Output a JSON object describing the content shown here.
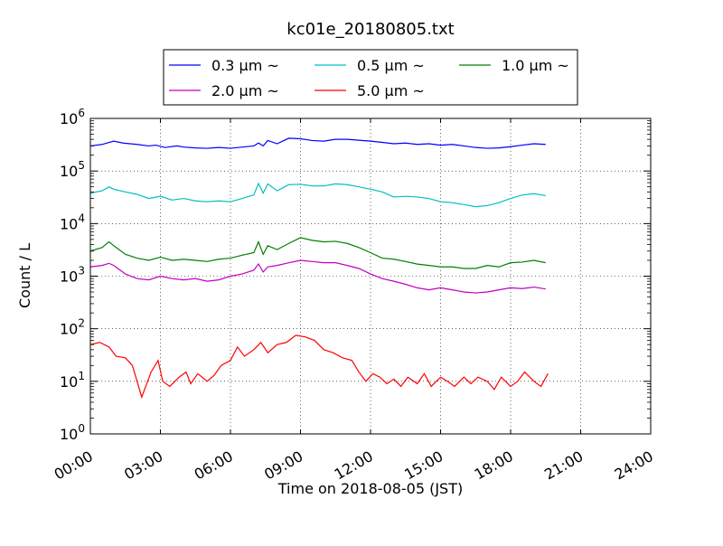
{
  "chart_data": {
    "type": "line",
    "title": "kc01e_20180805.txt",
    "xlabel": "Time on 2018-08-05 (JST)",
    "ylabel": "Count / L",
    "x_unit": "hours",
    "xlim": [
      0,
      24
    ],
    "ylim": [
      1,
      1000000
    ],
    "yscale": "log",
    "grid": true,
    "legend_position": "top-center",
    "x_ticks": [
      {
        "value": 0,
        "label": "00:00"
      },
      {
        "value": 3,
        "label": "03:00"
      },
      {
        "value": 6,
        "label": "06:00"
      },
      {
        "value": 9,
        "label": "09:00"
      },
      {
        "value": 12,
        "label": "12:00"
      },
      {
        "value": 15,
        "label": "15:00"
      },
      {
        "value": 18,
        "label": "18:00"
      },
      {
        "value": 21,
        "label": "21:00"
      },
      {
        "value": 24,
        "label": "24:00"
      }
    ],
    "y_ticks": [
      {
        "value": 1,
        "base": "10",
        "exp": "0"
      },
      {
        "value": 10,
        "base": "10",
        "exp": "1"
      },
      {
        "value": 100,
        "base": "10",
        "exp": "2"
      },
      {
        "value": 1000,
        "base": "10",
        "exp": "3"
      },
      {
        "value": 10000,
        "base": "10",
        "exp": "4"
      },
      {
        "value": 100000,
        "base": "10",
        "exp": "5"
      },
      {
        "value": 1000000,
        "base": "10",
        "exp": "6"
      }
    ],
    "series": [
      {
        "name": "0.3 μm ~",
        "color": "#0000ff",
        "points": [
          [
            0.0,
            300000
          ],
          [
            0.5,
            320000
          ],
          [
            0.8,
            350000
          ],
          [
            1.0,
            370000
          ],
          [
            1.4,
            340000
          ],
          [
            2.0,
            320000
          ],
          [
            2.5,
            300000
          ],
          [
            2.8,
            310000
          ],
          [
            3.2,
            280000
          ],
          [
            3.7,
            300000
          ],
          [
            4.0,
            285000
          ],
          [
            4.5,
            275000
          ],
          [
            5.0,
            270000
          ],
          [
            5.5,
            280000
          ],
          [
            6.0,
            270000
          ],
          [
            6.5,
            285000
          ],
          [
            7.0,
            300000
          ],
          [
            7.2,
            340000
          ],
          [
            7.4,
            300000
          ],
          [
            7.6,
            380000
          ],
          [
            8.0,
            330000
          ],
          [
            8.5,
            420000
          ],
          [
            9.0,
            410000
          ],
          [
            9.5,
            380000
          ],
          [
            10.0,
            370000
          ],
          [
            10.5,
            400000
          ],
          [
            11.0,
            400000
          ],
          [
            11.5,
            385000
          ],
          [
            12.0,
            370000
          ],
          [
            12.5,
            350000
          ],
          [
            13.0,
            330000
          ],
          [
            13.5,
            340000
          ],
          [
            14.0,
            320000
          ],
          [
            14.5,
            330000
          ],
          [
            15.0,
            310000
          ],
          [
            15.5,
            320000
          ],
          [
            16.0,
            300000
          ],
          [
            16.5,
            280000
          ],
          [
            17.0,
            270000
          ],
          [
            17.5,
            275000
          ],
          [
            18.0,
            290000
          ],
          [
            18.5,
            310000
          ],
          [
            19.0,
            330000
          ],
          [
            19.5,
            320000
          ]
        ]
      },
      {
        "name": "0.5 μm ~",
        "color": "#00bfbf",
        "points": [
          [
            0.0,
            38000
          ],
          [
            0.5,
            42000
          ],
          [
            0.8,
            50000
          ],
          [
            1.0,
            45000
          ],
          [
            1.5,
            40000
          ],
          [
            2.0,
            36000
          ],
          [
            2.5,
            30000
          ],
          [
            3.0,
            33000
          ],
          [
            3.5,
            28000
          ],
          [
            4.0,
            30000
          ],
          [
            4.5,
            27000
          ],
          [
            5.0,
            26000
          ],
          [
            5.5,
            27000
          ],
          [
            6.0,
            26000
          ],
          [
            6.5,
            30000
          ],
          [
            7.0,
            35000
          ],
          [
            7.2,
            58000
          ],
          [
            7.4,
            38000
          ],
          [
            7.6,
            57000
          ],
          [
            8.0,
            42000
          ],
          [
            8.5,
            55000
          ],
          [
            9.0,
            56000
          ],
          [
            9.5,
            52000
          ],
          [
            10.0,
            52000
          ],
          [
            10.5,
            57000
          ],
          [
            11.0,
            55000
          ],
          [
            11.5,
            50000
          ],
          [
            12.0,
            45000
          ],
          [
            12.5,
            40000
          ],
          [
            13.0,
            32000
          ],
          [
            13.5,
            33000
          ],
          [
            14.0,
            32000
          ],
          [
            14.5,
            30000
          ],
          [
            15.0,
            26000
          ],
          [
            15.5,
            25000
          ],
          [
            16.0,
            23000
          ],
          [
            16.5,
            21000
          ],
          [
            17.0,
            22000
          ],
          [
            17.5,
            25000
          ],
          [
            18.0,
            30000
          ],
          [
            18.5,
            35000
          ],
          [
            19.0,
            37000
          ],
          [
            19.5,
            34000
          ]
        ]
      },
      {
        "name": "1.0 μm ~",
        "color": "#008000",
        "points": [
          [
            0.0,
            3000
          ],
          [
            0.5,
            3500
          ],
          [
            0.8,
            4500
          ],
          [
            1.0,
            3800
          ],
          [
            1.5,
            2600
          ],
          [
            2.0,
            2200
          ],
          [
            2.5,
            2000
          ],
          [
            3.0,
            2300
          ],
          [
            3.5,
            2000
          ],
          [
            4.0,
            2100
          ],
          [
            4.5,
            2000
          ],
          [
            5.0,
            1900
          ],
          [
            5.5,
            2100
          ],
          [
            6.0,
            2200
          ],
          [
            6.5,
            2500
          ],
          [
            7.0,
            2800
          ],
          [
            7.2,
            4500
          ],
          [
            7.4,
            2600
          ],
          [
            7.6,
            3800
          ],
          [
            8.0,
            3200
          ],
          [
            8.5,
            4200
          ],
          [
            9.0,
            5400
          ],
          [
            9.5,
            4800
          ],
          [
            10.0,
            4500
          ],
          [
            10.5,
            4600
          ],
          [
            11.0,
            4200
          ],
          [
            11.5,
            3500
          ],
          [
            12.0,
            2800
          ],
          [
            12.5,
            2200
          ],
          [
            13.0,
            2100
          ],
          [
            13.5,
            1900
          ],
          [
            14.0,
            1700
          ],
          [
            14.5,
            1600
          ],
          [
            15.0,
            1500
          ],
          [
            15.5,
            1500
          ],
          [
            16.0,
            1400
          ],
          [
            16.5,
            1400
          ],
          [
            17.0,
            1600
          ],
          [
            17.5,
            1500
          ],
          [
            18.0,
            1800
          ],
          [
            18.5,
            1850
          ],
          [
            19.0,
            2000
          ],
          [
            19.5,
            1800
          ]
        ]
      },
      {
        "name": "2.0 μm ~",
        "color": "#bf00bf",
        "points": [
          [
            0.0,
            1500
          ],
          [
            0.5,
            1600
          ],
          [
            0.8,
            1750
          ],
          [
            1.0,
            1600
          ],
          [
            1.5,
            1100
          ],
          [
            2.0,
            900
          ],
          [
            2.5,
            850
          ],
          [
            3.0,
            1000
          ],
          [
            3.5,
            900
          ],
          [
            4.0,
            850
          ],
          [
            4.5,
            900
          ],
          [
            5.0,
            800
          ],
          [
            5.5,
            850
          ],
          [
            6.0,
            1000
          ],
          [
            6.5,
            1100
          ],
          [
            7.0,
            1300
          ],
          [
            7.2,
            1700
          ],
          [
            7.4,
            1200
          ],
          [
            7.6,
            1500
          ],
          [
            8.0,
            1600
          ],
          [
            8.5,
            1800
          ],
          [
            9.0,
            2000
          ],
          [
            9.5,
            1900
          ],
          [
            10.0,
            1800
          ],
          [
            10.5,
            1800
          ],
          [
            11.0,
            1600
          ],
          [
            11.5,
            1400
          ],
          [
            12.0,
            1100
          ],
          [
            12.5,
            900
          ],
          [
            13.0,
            800
          ],
          [
            13.5,
            700
          ],
          [
            14.0,
            600
          ],
          [
            14.5,
            550
          ],
          [
            15.0,
            600
          ],
          [
            15.5,
            550
          ],
          [
            16.0,
            500
          ],
          [
            16.5,
            480
          ],
          [
            17.0,
            500
          ],
          [
            17.5,
            550
          ],
          [
            18.0,
            600
          ],
          [
            18.5,
            580
          ],
          [
            19.0,
            620
          ],
          [
            19.5,
            570
          ]
        ]
      },
      {
        "name": "5.0 μm ~",
        "color": "#ff0000",
        "points": [
          [
            0.0,
            50
          ],
          [
            0.4,
            55
          ],
          [
            0.8,
            45
          ],
          [
            1.1,
            30
          ],
          [
            1.5,
            28
          ],
          [
            1.8,
            20
          ],
          [
            2.0,
            10
          ],
          [
            2.2,
            5
          ],
          [
            2.6,
            15
          ],
          [
            2.9,
            25
          ],
          [
            3.1,
            10
          ],
          [
            3.4,
            8
          ],
          [
            3.8,
            12
          ],
          [
            4.1,
            15
          ],
          [
            4.3,
            9
          ],
          [
            4.6,
            14
          ],
          [
            5.0,
            10
          ],
          [
            5.3,
            13
          ],
          [
            5.6,
            20
          ],
          [
            6.0,
            25
          ],
          [
            6.3,
            45
          ],
          [
            6.6,
            30
          ],
          [
            7.0,
            40
          ],
          [
            7.3,
            55
          ],
          [
            7.6,
            35
          ],
          [
            8.0,
            50
          ],
          [
            8.4,
            55
          ],
          [
            8.8,
            75
          ],
          [
            9.2,
            70
          ],
          [
            9.6,
            60
          ],
          [
            10.0,
            40
          ],
          [
            10.4,
            35
          ],
          [
            10.8,
            28
          ],
          [
            11.2,
            25
          ],
          [
            11.5,
            15
          ],
          [
            11.8,
            10
          ],
          [
            12.1,
            14
          ],
          [
            12.4,
            12
          ],
          [
            12.7,
            9
          ],
          [
            13.0,
            11
          ],
          [
            13.3,
            8
          ],
          [
            13.6,
            12
          ],
          [
            14.0,
            9
          ],
          [
            14.3,
            14
          ],
          [
            14.6,
            8
          ],
          [
            15.0,
            12
          ],
          [
            15.3,
            10
          ],
          [
            15.6,
            8
          ],
          [
            16.0,
            12
          ],
          [
            16.3,
            9
          ],
          [
            16.6,
            12
          ],
          [
            17.0,
            10
          ],
          [
            17.3,
            7
          ],
          [
            17.6,
            12
          ],
          [
            18.0,
            8
          ],
          [
            18.3,
            10
          ],
          [
            18.6,
            15
          ],
          [
            19.0,
            10
          ],
          [
            19.3,
            8
          ],
          [
            19.6,
            14
          ]
        ]
      }
    ]
  }
}
